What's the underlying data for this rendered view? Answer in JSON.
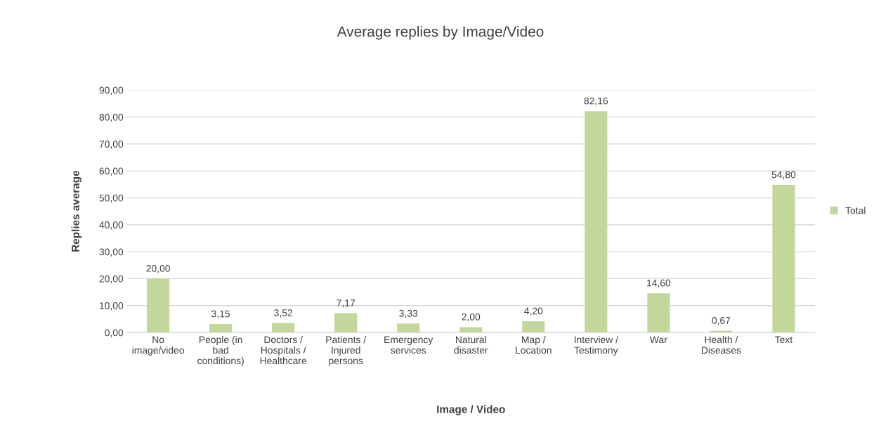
{
  "chart_data": {
    "type": "bar",
    "title": "Average replies by Image/Video",
    "xlabel": "Image / Video",
    "ylabel": "Replies average",
    "categories": [
      "No\nimage/video",
      "People (in\nbad\nconditions)",
      "Doctors /\nHospitals /\nHealthcare",
      "Patients /\nInjured\npersons",
      "Emergency\nservices",
      "Natural\ndisaster",
      "Map /\nLocation",
      "Interview /\nTestimony",
      "War",
      "Health /\nDiseases",
      "Text"
    ],
    "series": [
      {
        "name": "Total",
        "color": "#c3d69b",
        "values": [
          20.0,
          3.15,
          3.52,
          7.17,
          3.33,
          2.0,
          4.2,
          82.16,
          14.6,
          0.67,
          54.8
        ],
        "value_labels": [
          "20,00",
          "3,15",
          "3,52",
          "7,17",
          "3,33",
          "2,00",
          "4,20",
          "82,16",
          "14,60",
          "0,67",
          "54,80"
        ]
      }
    ],
    "ylim": [
      0,
      90
    ],
    "yticks": [
      {
        "value": 0,
        "label": "0,00"
      },
      {
        "value": 10,
        "label": "10,00"
      },
      {
        "value": 20,
        "label": "20,00"
      },
      {
        "value": 30,
        "label": "30,00"
      },
      {
        "value": 40,
        "label": "40,00"
      },
      {
        "value": 50,
        "label": "50,00"
      },
      {
        "value": 60,
        "label": "60,00"
      },
      {
        "value": 70,
        "label": "70,00"
      },
      {
        "value": 80,
        "label": "80,00"
      },
      {
        "value": 90,
        "label": "90,00"
      }
    ],
    "grid": "y",
    "legend": "right"
  }
}
